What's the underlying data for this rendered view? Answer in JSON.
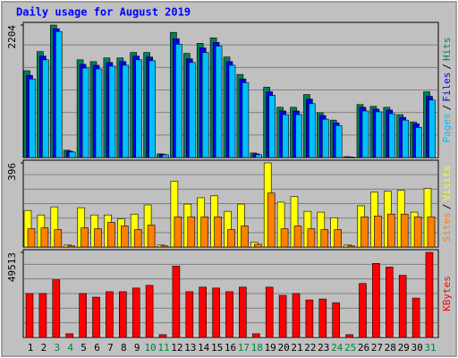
{
  "chart_data": [
    {
      "type": "bar",
      "title": "Daily usage for August 2019",
      "legend_position": "right",
      "legend_separator": "/",
      "ylim": [
        0,
        2204
      ],
      "yticks": [
        2204
      ],
      "series": [
        {
          "name": "Hits",
          "color": "#00805c",
          "values": [
            1444,
            1763,
            2204,
            122,
            1626,
            1596,
            1657,
            1657,
            1748,
            1748,
            61,
            2082,
            1733,
            1900,
            1991,
            1672,
            1383,
            76,
            1170,
            836,
            836,
            1049,
            745,
            623,
            15,
            882,
            851,
            836,
            714,
            593,
            1094
          ]
        },
        {
          "name": "Files",
          "color": "#0000ff",
          "values": [
            1368,
            1687,
            2143,
            106,
            1550,
            1535,
            1581,
            1596,
            1687,
            1672,
            53,
            1976,
            1642,
            1824,
            1915,
            1596,
            1307,
            61,
            1094,
            775,
            775,
            973,
            699,
            577,
            12,
            836,
            805,
            790,
            668,
            562,
            1018
          ]
        },
        {
          "name": "Pages",
          "color": "#00c0ff",
          "values": [
            1307,
            1626,
            2097,
            91,
            1490,
            1474,
            1520,
            1535,
            1626,
            1611,
            46,
            1885,
            1581,
            1748,
            1854,
            1535,
            1246,
            46,
            1033,
            714,
            714,
            897,
            638,
            531,
            9,
            775,
            760,
            729,
            623,
            501,
            957
          ]
        }
      ]
    },
    {
      "type": "bar",
      "legend_position": "right",
      "ylim": [
        0,
        396
      ],
      "yticks": [
        396
      ],
      "series": [
        {
          "name": "Visits",
          "color": "#ffff00",
          "values": [
            172,
            151,
            189,
            9,
            185,
            151,
            151,
            133,
            155,
            198,
            9,
            310,
            202,
            232,
            241,
            168,
            202,
            22,
            396,
            211,
            237,
            168,
            164,
            138,
            9,
            194,
            258,
            263,
            267,
            164,
            275
          ]
        },
        {
          "name": "Sites",
          "color": "#ff8000",
          "values": [
            86,
            90,
            82,
            5,
            90,
            86,
            116,
            99,
            82,
            103,
            5,
            142,
            142,
            142,
            142,
            82,
            99,
            13,
            254,
            86,
            99,
            86,
            82,
            82,
            5,
            142,
            146,
            155,
            155,
            142,
            142
          ]
        }
      ]
    },
    {
      "type": "bar",
      "legend_position": "right",
      "ylim": [
        0,
        49513
      ],
      "yticks": [
        49513
      ],
      "categories": [
        "1",
        "2",
        "3",
        "4",
        "5",
        "6",
        "7",
        "8",
        "9",
        "10",
        "11",
        "12",
        "13",
        "14",
        "15",
        "16",
        "17",
        "18",
        "19",
        "20",
        "21",
        "22",
        "23",
        "24",
        "25",
        "26",
        "27",
        "28",
        "29",
        "30",
        "31"
      ],
      "category_colors": [
        "#000000",
        "#000000",
        "#008040",
        "#008040",
        "#000000",
        "#000000",
        "#000000",
        "#000000",
        "#000000",
        "#008040",
        "#008040",
        "#000000",
        "#000000",
        "#000000",
        "#000000",
        "#000000",
        "#008040",
        "#008040",
        "#000000",
        "#000000",
        "#000000",
        "#000000",
        "#000000",
        "#008040",
        "#008040",
        "#000000",
        "#000000",
        "#000000",
        "#000000",
        "#000000",
        "#008040"
      ],
      "series": [
        {
          "name": "KBytes",
          "color": "#ff0000",
          "values": [
            25555,
            25555,
            33540,
            2130,
            25555,
            23425,
            26620,
            26620,
            28750,
            30350,
            1600,
            41525,
            26620,
            29280,
            28750,
            26620,
            29280,
            2130,
            29280,
            24490,
            25555,
            21830,
            22360,
            20230,
            1600,
            31410,
            43100,
            40975,
            36180,
            22890,
            49513
          ]
        }
      ]
    }
  ]
}
